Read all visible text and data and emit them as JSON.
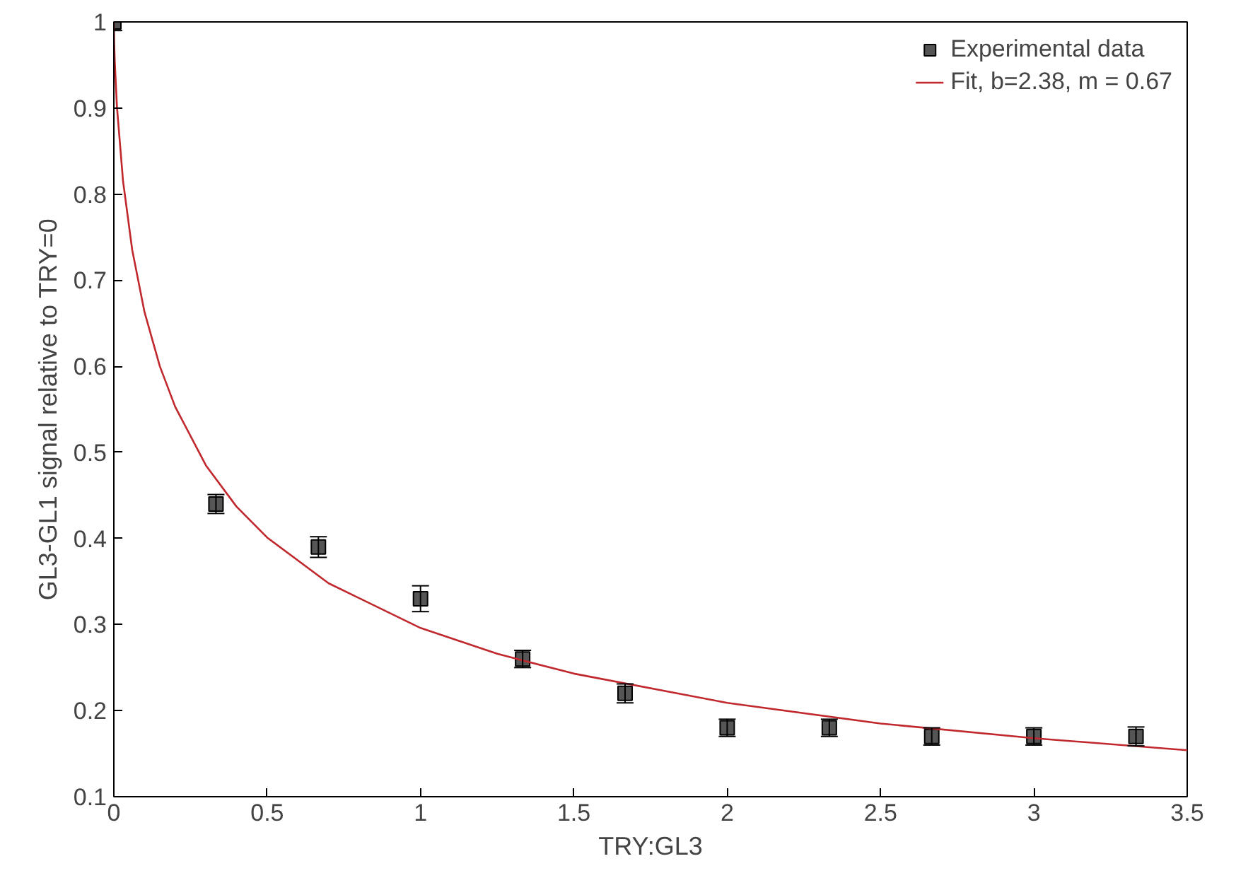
{
  "chart_data": {
    "type": "scatter",
    "xlabel": "TRY:GL3",
    "ylabel": "GL3-GL1 signal relative to TRY=0",
    "xlim": [
      0,
      3.5
    ],
    "ylim": [
      0.1,
      1
    ],
    "xticks": [
      0,
      0.5,
      1,
      1.5,
      2,
      2.5,
      3,
      3.5
    ],
    "yticks": [
      0.1,
      0.2,
      0.3,
      0.4,
      0.5,
      0.6,
      0.7,
      0.8,
      0.9,
      1
    ],
    "grid": false,
    "legend": "top right",
    "series": [
      {
        "name": "Experimental data",
        "marker": "square",
        "color": "#555555",
        "x": [
          0,
          0.333,
          0.667,
          1,
          1.333,
          1.667,
          2,
          2.333,
          2.667,
          3,
          3.333
        ],
        "values": [
          1,
          0.44,
          0.39,
          0.33,
          0.26,
          0.22,
          0.18,
          0.18,
          0.17,
          0.17,
          0.17
        ],
        "errors": [
          0.01,
          0.011,
          0.012,
          0.015,
          0.01,
          0.011,
          0.01,
          0.01,
          0.01,
          0.01,
          0.011
        ]
      },
      {
        "name": "Fit, b=2.38, m = 0.67",
        "type": "line",
        "line_style": "solid",
        "color": "#c0282d",
        "x": [
          0,
          0.001,
          0.003,
          0.01,
          0.03,
          0.06,
          0.1,
          0.15,
          0.2,
          0.3,
          0.4,
          0.5,
          0.7,
          1,
          1.25,
          1.5,
          2,
          2.5,
          3,
          3.5
        ],
        "values": [
          1,
          0.977,
          0.954,
          0.902,
          0.815,
          0.735,
          0.663,
          0.6,
          0.553,
          0.485,
          0.437,
          0.401,
          0.348,
          0.296,
          0.266,
          0.243,
          0.209,
          0.185,
          0.168,
          0.154
        ]
      }
    ]
  }
}
